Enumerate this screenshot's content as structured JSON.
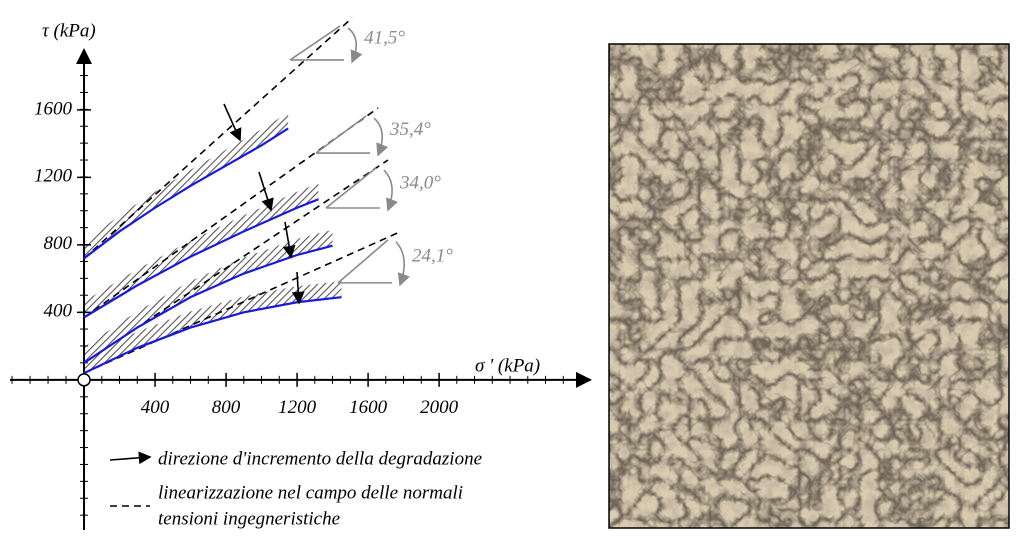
{
  "chart_data": {
    "type": "line",
    "x_label": "σ ' (kPa)",
    "y_label": "τ (kPa)",
    "xlim": [
      -417,
      2850
    ],
    "ylim": [
      -890,
      1955
    ],
    "xticks": [
      400,
      800,
      1200,
      1600,
      2000
    ],
    "yticks": [
      400,
      800,
      1200,
      1600
    ],
    "series": [
      {
        "color": "#1a1adb",
        "x": [
          0,
          200,
          400,
          600,
          800,
          1000,
          1150
        ],
        "values": [
          720,
          880,
          1020,
          1150,
          1270,
          1390,
          1490
        ]
      },
      {
        "color": "#1a1adb",
        "x": [
          0,
          300,
          600,
          900,
          1200,
          1320
        ],
        "values": [
          370,
          560,
          730,
          880,
          1020,
          1070
        ]
      },
      {
        "color": "#1a1adb",
        "x": [
          0,
          300,
          600,
          900,
          1200,
          1400
        ],
        "values": [
          100,
          310,
          490,
          630,
          740,
          795
        ]
      },
      {
        "color": "#1a1adb",
        "x": [
          0,
          300,
          600,
          900,
          1200,
          1450
        ],
        "values": [
          40,
          190,
          310,
          400,
          460,
          490
        ]
      }
    ],
    "linearizations": [
      {
        "x": [
          0,
          1510
        ],
        "values": [
          720,
          2145
        ],
        "label": "41,5°"
      },
      {
        "x": [
          0,
          1656
        ],
        "values": [
          370,
          1611
        ],
        "label": "35,4°"
      },
      {
        "x": [
          0,
          1712
        ],
        "values": [
          100,
          1303
        ],
        "label": "34,0°"
      },
      {
        "x": [
          0,
          1780
        ],
        "values": [
          40,
          877
        ],
        "label": "24,1°"
      }
    ],
    "legend": [
      "direzione d'incremento della degradazione",
      "linearizzazione nel campo delle normali",
      "tensioni ingegneristiche"
    ]
  }
}
